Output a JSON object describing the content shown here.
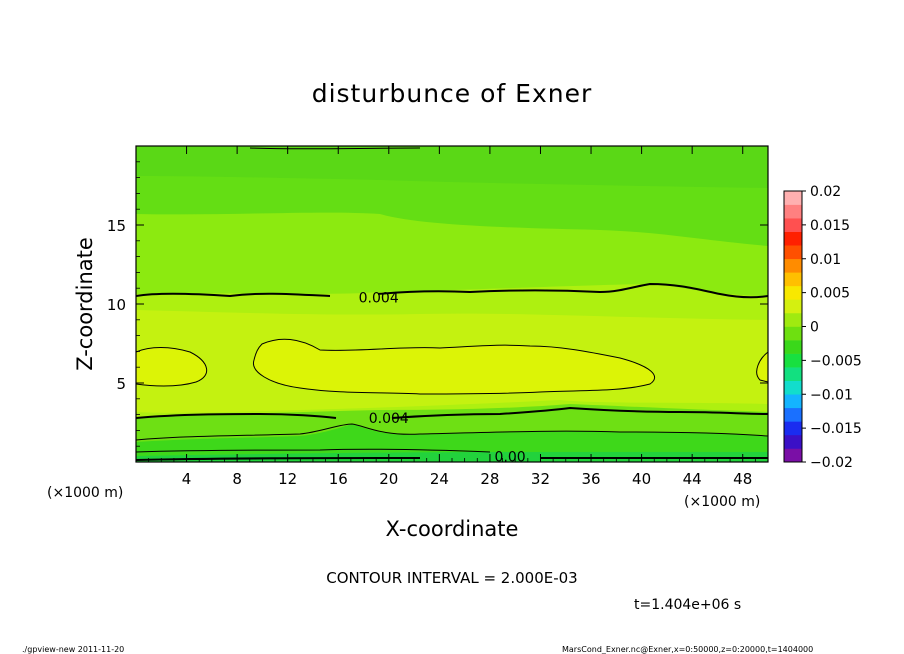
{
  "chart_data": {
    "type": "heatmap",
    "title": "disturbunce of Exner",
    "xlabel": "X-coordinate",
    "ylabel": "Z-coordinate",
    "x_unit": "(×1000 m)",
    "y_unit": "(×1000 m)",
    "xlim": [
      0,
      50
    ],
    "ylim": [
      0,
      20
    ],
    "x_ticks": [
      4,
      8,
      12,
      16,
      20,
      24,
      28,
      32,
      36,
      40,
      44,
      48
    ],
    "y_ticks": [
      5,
      10,
      15
    ],
    "colorbar": {
      "min": -0.02,
      "max": 0.02,
      "labels": [
        "0.02",
        "0.015",
        "0.01",
        "0.005",
        "0",
        "−0.005",
        "−0.01",
        "−0.015",
        "−0.02"
      ],
      "colors": [
        "#7a0fa6",
        "#3b10c6",
        "#1a2cf0",
        "#1a70ff",
        "#14b4ff",
        "#12ddcc",
        "#12e080",
        "#18e040",
        "#3ad81a",
        "#6ee010",
        "#a0ea10",
        "#d4f010",
        "#f8e800",
        "#ffc000",
        "#ff8c00",
        "#ff5000",
        "#ff2000",
        "#ff5050",
        "#ff8080",
        "#ffb0b0"
      ]
    },
    "contour_labels": [
      {
        "text": "0.004",
        "x": 19.2,
        "y": 10.4
      },
      {
        "text": "0.004",
        "x": 20.0,
        "y": 2.8
      },
      {
        "text": "0.00",
        "x": 29.6,
        "y": 0.35
      }
    ],
    "contour_interval_text": "CONTOUR INTERVAL = 2.000E-03"
  },
  "time_label": "t=1.404e+06 s",
  "footer_left": "./gpview-new   2011-11-20",
  "footer_right": "MarsCond_Exner.nc@Exner,x=0:50000,z=0:20000,t=1404000"
}
